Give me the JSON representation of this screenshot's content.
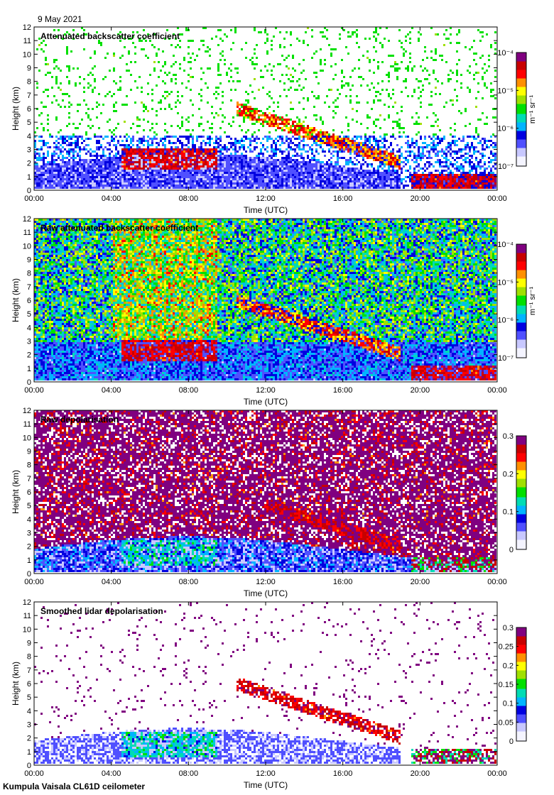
{
  "header": {
    "date": "9 May 2021"
  },
  "footer": {
    "instrument": "Kumpula Vaisala CL61D ceilometer"
  },
  "colors": {
    "colormap": [
      "#f4f4ff",
      "#c8c8ff",
      "#5050ff",
      "#0000e0",
      "#00b4ff",
      "#00dcb4",
      "#00e000",
      "#a0e000",
      "#ffff00",
      "#ff9000",
      "#ff0000",
      "#c80000",
      "#800080"
    ]
  },
  "chart_data": [
    {
      "type": "heatmap",
      "title": "Attenuated backscatter coefficient",
      "xlabel": "Time (UTC)",
      "ylabel": "Height (km)",
      "xticks": [
        "00:00",
        "04:00",
        "08:00",
        "12:00",
        "16:00",
        "20:00",
        "00:00"
      ],
      "yticks": [
        "0",
        "1",
        "2",
        "3",
        "4",
        "5",
        "6",
        "7",
        "8",
        "9",
        "10",
        "11",
        "12"
      ],
      "ylim": [
        0,
        12
      ],
      "colorbar": {
        "scale": "log",
        "range": [
          1e-07,
          0.0001
        ],
        "ticks": [
          "10⁻⁷",
          "10⁻⁶",
          "10⁻⁵",
          "10⁻⁴"
        ],
        "unit": "m⁻¹ sr⁻¹"
      },
      "noise": "sparse",
      "features": [
        {
          "t_start": 4.5,
          "t_end": 9.5,
          "base_km": 1.5,
          "top_km": 3.0,
          "level": "high"
        },
        {
          "t_start": 10.5,
          "t_end": 19.0,
          "base_km_start": 5.5,
          "base_km_end": 1.5,
          "level": "medium"
        },
        {
          "t_start": 19.5,
          "t_end": 24.0,
          "base_km": 0.0,
          "top_km": 1.2,
          "level": "high"
        }
      ]
    },
    {
      "type": "heatmap",
      "title": "Raw attenuated backscatter coefficient",
      "xlabel": "Time (UTC)",
      "ylabel": "Height (km)",
      "xticks": [
        "00:00",
        "04:00",
        "08:00",
        "12:00",
        "16:00",
        "20:00",
        "00:00"
      ],
      "yticks": [
        "0",
        "1",
        "2",
        "3",
        "4",
        "5",
        "6",
        "7",
        "8",
        "9",
        "10",
        "11",
        "12"
      ],
      "ylim": [
        0,
        12
      ],
      "colorbar": {
        "scale": "log",
        "range": [
          1e-07,
          0.0001
        ],
        "ticks": [
          "10⁻⁷",
          "10⁻⁶",
          "10⁻⁵",
          "10⁻⁴"
        ],
        "unit": "m⁻¹ sr⁻¹"
      },
      "noise": "dense",
      "features": [
        {
          "t_start": 4.5,
          "t_end": 9.5,
          "base_km": 1.5,
          "top_km": 3.0,
          "level": "high"
        },
        {
          "t_start": 10.5,
          "t_end": 19.0,
          "base_km_start": 5.5,
          "base_km_end": 1.5,
          "level": "medium"
        },
        {
          "t_start": 19.5,
          "t_end": 24.0,
          "base_km": 0.0,
          "top_km": 1.2,
          "level": "high"
        }
      ]
    },
    {
      "type": "heatmap",
      "title": "Raw depolarisation",
      "xlabel": "Time (UTC)",
      "ylabel": "Height (km)",
      "xticks": [
        "00:00",
        "04:00",
        "08:00",
        "12:00",
        "16:00",
        "20:00",
        "00:00"
      ],
      "yticks": [
        "0",
        "1",
        "2",
        "3",
        "4",
        "5",
        "6",
        "7",
        "8",
        "9",
        "10",
        "11",
        "12"
      ],
      "ylim": [
        0,
        12
      ],
      "colorbar": {
        "scale": "linear",
        "range": [
          0,
          0.3
        ],
        "ticks": [
          "0",
          "0.1",
          "0.2",
          "0.3"
        ],
        "unit": ""
      },
      "noise": "purple",
      "features": [
        {
          "t_start": 4.5,
          "t_end": 9.5,
          "base_km": 0.5,
          "top_km": 2.5,
          "level": "low"
        },
        {
          "t_start": 12.0,
          "t_end": 19.0,
          "base_km_start": 4.5,
          "base_km_end": 1.5,
          "level": "high"
        },
        {
          "t_start": 19.5,
          "t_end": 24.0,
          "base_km": 0.0,
          "top_km": 1.2,
          "level": "mixed"
        }
      ]
    },
    {
      "type": "heatmap",
      "title": "Smoothed lidar depolarisation",
      "xlabel": "Time (UTC)",
      "ylabel": "Height (km)",
      "xticks": [
        "00:00",
        "04:00",
        "08:00",
        "12:00",
        "16:00",
        "20:00",
        "00:00"
      ],
      "yticks": [
        "0",
        "1",
        "2",
        "3",
        "4",
        "5",
        "6",
        "7",
        "8",
        "9",
        "10",
        "11",
        "12"
      ],
      "ylim": [
        0,
        12
      ],
      "colorbar": {
        "scale": "linear",
        "range": [
          0,
          0.3
        ],
        "ticks": [
          "0",
          "0.05",
          "0.1",
          "0.15",
          "0.2",
          "0.25",
          "0.3"
        ],
        "unit": ""
      },
      "noise": "sparse-purple",
      "features": [
        {
          "t_start": 4.5,
          "t_end": 9.5,
          "base_km": 0.5,
          "top_km": 2.5,
          "level": "low"
        },
        {
          "t_start": 10.5,
          "t_end": 19.0,
          "base_km_start": 5.5,
          "base_km_end": 1.5,
          "level": "high"
        },
        {
          "t_start": 19.5,
          "t_end": 24.0,
          "base_km": 0.0,
          "top_km": 1.2,
          "level": "mixed"
        }
      ]
    }
  ]
}
